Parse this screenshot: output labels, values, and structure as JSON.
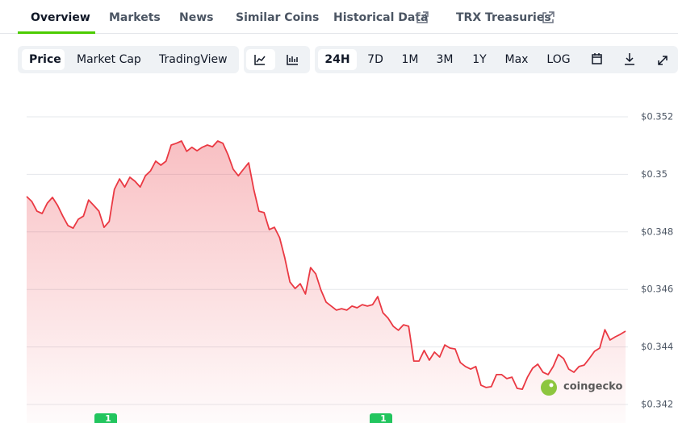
{
  "tabs": [
    "Overview",
    "Markets",
    "News",
    "Similar Coins",
    "Historical Data",
    "TRX Treasuries"
  ],
  "metric_buttons": [
    "Price",
    "Market Cap",
    "TradingView"
  ],
  "range_buttons": [
    "24H",
    "7D",
    "1M",
    "3M",
    "1Y",
    "Max",
    "LOG"
  ],
  "watermark": "coingecko",
  "event_markers": [
    "1",
    "1"
  ],
  "chart_data": {
    "type": "line",
    "color": "#ea3943",
    "grid": true,
    "ylim": [
      0.342,
      0.352
    ],
    "yticks": [
      {
        "value": 0.342,
        "label": "$0.342"
      },
      {
        "value": 0.344,
        "label": "$0.344"
      },
      {
        "value": 0.346,
        "label": "$0.346"
      },
      {
        "value": 0.348,
        "label": "$0.348"
      },
      {
        "value": 0.35,
        "label": "$0.35"
      },
      {
        "value": 0.352,
        "label": "$0.352"
      }
    ],
    "values": [
      0.34923,
      0.34906,
      0.34872,
      0.34864,
      0.349,
      0.3492,
      0.34892,
      0.34855,
      0.34822,
      0.34813,
      0.34844,
      0.34855,
      0.34911,
      0.34892,
      0.34872,
      0.34816,
      0.34836,
      0.34948,
      0.34984,
      0.34956,
      0.3499,
      0.34976,
      0.34956,
      0.34995,
      0.35012,
      0.35046,
      0.35032,
      0.35046,
      0.35102,
      0.35108,
      0.35116,
      0.3508,
      0.35094,
      0.35082,
      0.35094,
      0.35102,
      0.35096,
      0.35116,
      0.35108,
      0.35068,
      0.35018,
      0.34995,
      0.35018,
      0.3504,
      0.34948,
      0.34872,
      0.34867,
      0.34808,
      0.34816,
      0.3478,
      0.3471,
      0.34626,
      0.34603,
      0.3462,
      0.34584,
      0.34676,
      0.34654,
      0.34598,
      0.34556,
      0.34542,
      0.34528,
      0.34533,
      0.34528,
      0.34542,
      0.34536,
      0.34547,
      0.34542,
      0.34547,
      0.34575,
      0.34519,
      0.345,
      0.34472,
      0.34458,
      0.34477,
      0.34472,
      0.34351,
      0.34351,
      0.34388,
      0.34354,
      0.34382,
      0.34365,
      0.34407,
      0.34396,
      0.34393,
      0.34346,
      0.34332,
      0.34323,
      0.34332,
      0.34267,
      0.34259,
      0.34262,
      0.34304,
      0.34304,
      0.3429,
      0.34295,
      0.34256,
      0.34253,
      0.34295,
      0.34326,
      0.3434,
      0.34312,
      0.34304,
      0.34332,
      0.34374,
      0.3436,
      0.34323,
      0.34312,
      0.34332,
      0.34337,
      0.3436,
      0.34385,
      0.34396,
      0.3446,
      0.34424,
      0.34435,
      0.34444,
      0.34455
    ]
  }
}
